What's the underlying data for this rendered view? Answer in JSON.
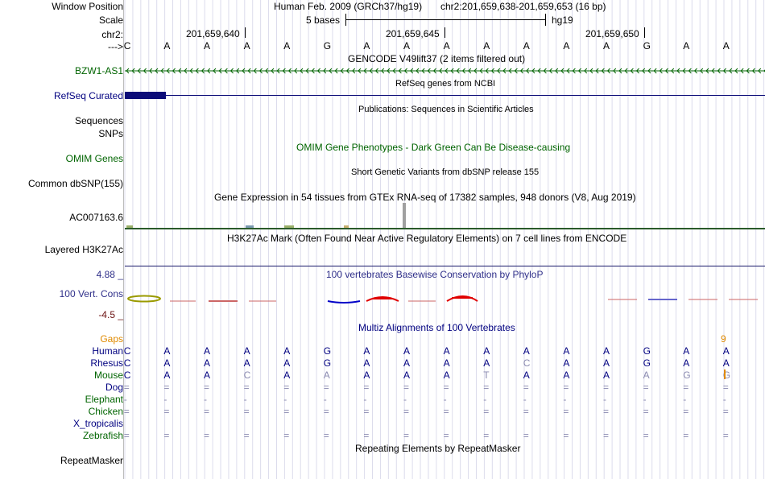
{
  "ruler": {
    "window_position_label": "Window Position",
    "assembly": "Human Feb. 2009 (GRCh37/hg19)",
    "position": "chr2:201,659,638-201,659,653 (16 bp)",
    "scale_label": "Scale",
    "scale_text": "5 bases",
    "scale_db": "hg19",
    "chrom_label": "chr2:",
    "ticks": [
      "201,659,640",
      "201,659,645",
      "201,659,650"
    ],
    "strand_label": "--->",
    "bases": [
      "C",
      "A",
      "A",
      "A",
      "A",
      "G",
      "A",
      "A",
      "A",
      "A",
      "A",
      "A",
      "A",
      "G",
      "A",
      "A"
    ]
  },
  "tracks": {
    "gencode": {
      "title": "GENCODE V49lift37 (2 items filtered out)",
      "label": "BZW1-AS1",
      "color": "#006400"
    },
    "refseq": {
      "title": "RefSeq genes from NCBI",
      "label": "RefSeq Curated",
      "color": "#0c0c78"
    },
    "publications": {
      "title": "Publications: Sequences in Scientific Articles",
      "label": "Sequences"
    },
    "snps_label": "SNPs",
    "omim": {
      "title": "OMIM Gene Phenotypes - Dark Green Can Be Disease-causing",
      "label": "OMIM Genes"
    },
    "dbsnp": {
      "title": "Short Genetic Variants from dbSNP release 155",
      "label": "Common dbSNP(155)"
    },
    "gtex": {
      "title": "Gene Expression in 54 tissues from GTEx RNA-seq of 17382 samples, 948 donors (V8, Aug 2019)",
      "label": "AC007163.6"
    },
    "h3k27ac": {
      "title": "H3K27Ac Mark (Often Found Near Active Regulatory Elements) on 7 cell lines from ENCODE",
      "label": "Layered H3K27Ac"
    },
    "phylop": {
      "title": "100 vertebrates Basewise Conservation by PhyloP",
      "label": "100 Vert. Cons",
      "max": "4.88 _",
      "min": "-4.5 _"
    },
    "multiz": {
      "title": "Multiz Alignments of 100 Vertebrates",
      "gaps_label": "Gaps",
      "gap_marker": "9",
      "species": [
        {
          "name": "Human",
          "seq": [
            "C",
            "A",
            "A",
            "A",
            "A",
            "G",
            "A",
            "A",
            "A",
            "A",
            "A",
            "A",
            "A",
            "G",
            "A",
            "A"
          ]
        },
        {
          "name": "Rhesus",
          "seq": [
            "C",
            "A",
            "A",
            "A",
            "A",
            "G",
            "A",
            "A",
            "A",
            "A",
            "C",
            "A",
            "A",
            "G",
            "A",
            "A"
          ]
        },
        {
          "name": "Mouse",
          "seq": [
            "C",
            "A",
            "A",
            "C",
            "A",
            "A",
            "A",
            "A",
            "A",
            "T",
            "A",
            "A",
            "A",
            "A",
            "G",
            "G"
          ]
        },
        {
          "name": "Dog",
          "seq": [
            "=",
            "=",
            "=",
            "=",
            "=",
            "=",
            "=",
            "=",
            "=",
            "=",
            "=",
            "=",
            "=",
            "=",
            "=",
            "="
          ]
        },
        {
          "name": "Elephant",
          "seq": [
            "-",
            "-",
            "-",
            "-",
            "-",
            "-",
            "-",
            "-",
            "-",
            "-",
            "-",
            "-",
            "-",
            "-",
            "-",
            "-"
          ]
        },
        {
          "name": "Chicken",
          "seq": [
            "=",
            "=",
            "=",
            "=",
            "=",
            "=",
            "=",
            "=",
            "=",
            "=",
            "=",
            "=",
            "=",
            "=",
            "=",
            "="
          ]
        },
        {
          "name": "X_tropicalis",
          "seq": [
            "",
            "",
            "",
            "",
            "",
            "",
            "",
            "",
            "",
            "",
            "",
            "",
            "",
            "",
            "",
            ""
          ]
        },
        {
          "name": "Zebrafish",
          "seq": [
            "=",
            "=",
            "=",
            "=",
            "=",
            "=",
            "=",
            "=",
            "=",
            "=",
            "=",
            "=",
            "=",
            "=",
            "=",
            "="
          ]
        }
      ]
    },
    "repeatmasker": {
      "title": "Repeating Elements by RepeatMasker",
      "label": "RepeatMasker"
    }
  },
  "colors": {
    "green": "#006400",
    "navy": "#000080",
    "phylop_pos": "#e00000",
    "phylop_neg": "#0000c8",
    "gaps": "#e08a00",
    "grid": "#d0d0e8"
  }
}
